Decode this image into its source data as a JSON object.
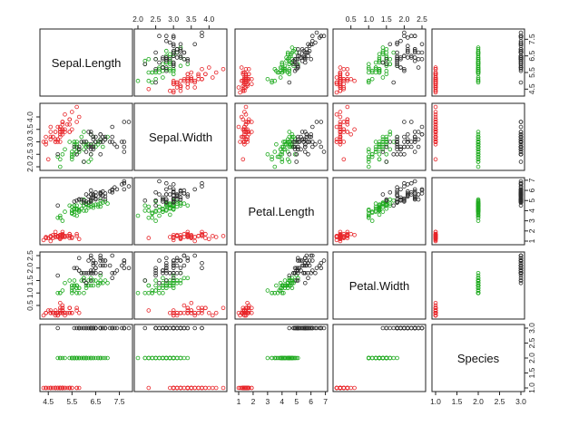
{
  "chart_data": {
    "type": "scatter",
    "variables": [
      "Sepal.Length",
      "Sepal.Width",
      "Petal.Length",
      "Petal.Width",
      "Species"
    ],
    "ranges": {
      "Sepal.Length": [
        4.3,
        7.9
      ],
      "Sepal.Width": [
        2.0,
        4.4
      ],
      "Petal.Length": [
        1.0,
        6.9
      ],
      "Petal.Width": [
        0.1,
        2.5
      ],
      "Species": [
        1,
        3
      ]
    },
    "ticks": {
      "Sepal.Length": [
        "4.5",
        "5.5",
        "6.5",
        "7.5"
      ],
      "Sepal.Width": [
        "2.0",
        "2.5",
        "3.0",
        "3.5",
        "4.0"
      ],
      "Petal.Length": [
        "1",
        "2",
        "3",
        "4",
        "5",
        "6",
        "7"
      ],
      "Petal.Width": [
        "0.5",
        "1.0",
        "1.5",
        "2.0",
        "2.5"
      ],
      "Species": [
        "1.0",
        "1.5",
        "2.0",
        "2.5",
        "3.0"
      ]
    },
    "colors": {
      "1": "#e8262a",
      "2": "#1faa1f",
      "3": "#2b2b2b"
    },
    "data": [
      [
        5.1,
        3.5,
        1.4,
        0.2,
        1
      ],
      [
        4.9,
        3.0,
        1.4,
        0.2,
        1
      ],
      [
        4.7,
        3.2,
        1.3,
        0.2,
        1
      ],
      [
        4.6,
        3.1,
        1.5,
        0.2,
        1
      ],
      [
        5.0,
        3.6,
        1.4,
        0.2,
        1
      ],
      [
        5.4,
        3.9,
        1.7,
        0.4,
        1
      ],
      [
        4.6,
        3.4,
        1.4,
        0.3,
        1
      ],
      [
        5.0,
        3.4,
        1.5,
        0.2,
        1
      ],
      [
        4.4,
        2.9,
        1.4,
        0.2,
        1
      ],
      [
        4.9,
        3.1,
        1.5,
        0.1,
        1
      ],
      [
        5.4,
        3.7,
        1.5,
        0.2,
        1
      ],
      [
        4.8,
        3.4,
        1.6,
        0.2,
        1
      ],
      [
        4.8,
        3.0,
        1.4,
        0.1,
        1
      ],
      [
        4.3,
        3.0,
        1.1,
        0.1,
        1
      ],
      [
        5.8,
        4.0,
        1.2,
        0.2,
        1
      ],
      [
        5.7,
        4.4,
        1.5,
        0.4,
        1
      ],
      [
        5.4,
        3.9,
        1.3,
        0.4,
        1
      ],
      [
        5.1,
        3.5,
        1.4,
        0.3,
        1
      ],
      [
        5.7,
        3.8,
        1.7,
        0.3,
        1
      ],
      [
        5.1,
        3.8,
        1.5,
        0.3,
        1
      ],
      [
        5.4,
        3.4,
        1.7,
        0.2,
        1
      ],
      [
        5.1,
        3.7,
        1.5,
        0.4,
        1
      ],
      [
        4.6,
        3.6,
        1.0,
        0.2,
        1
      ],
      [
        5.1,
        3.3,
        1.7,
        0.5,
        1
      ],
      [
        4.8,
        3.4,
        1.9,
        0.2,
        1
      ],
      [
        5.0,
        3.0,
        1.6,
        0.2,
        1
      ],
      [
        5.0,
        3.4,
        1.6,
        0.4,
        1
      ],
      [
        5.2,
        3.5,
        1.5,
        0.2,
        1
      ],
      [
        5.2,
        3.4,
        1.4,
        0.2,
        1
      ],
      [
        4.7,
        3.2,
        1.6,
        0.2,
        1
      ],
      [
        4.8,
        3.1,
        1.6,
        0.2,
        1
      ],
      [
        5.4,
        3.4,
        1.5,
        0.4,
        1
      ],
      [
        5.2,
        4.1,
        1.5,
        0.1,
        1
      ],
      [
        5.5,
        4.2,
        1.4,
        0.2,
        1
      ],
      [
        4.9,
        3.1,
        1.5,
        0.2,
        1
      ],
      [
        5.0,
        3.2,
        1.2,
        0.2,
        1
      ],
      [
        5.5,
        3.5,
        1.3,
        0.2,
        1
      ],
      [
        4.9,
        3.6,
        1.4,
        0.1,
        1
      ],
      [
        4.4,
        3.0,
        1.3,
        0.2,
        1
      ],
      [
        5.1,
        3.4,
        1.5,
        0.2,
        1
      ],
      [
        5.0,
        3.5,
        1.3,
        0.3,
        1
      ],
      [
        4.5,
        2.3,
        1.3,
        0.3,
        1
      ],
      [
        4.4,
        3.2,
        1.3,
        0.2,
        1
      ],
      [
        5.0,
        3.5,
        1.6,
        0.6,
        1
      ],
      [
        5.1,
        3.8,
        1.9,
        0.4,
        1
      ],
      [
        4.8,
        3.0,
        1.4,
        0.3,
        1
      ],
      [
        5.1,
        3.8,
        1.6,
        0.2,
        1
      ],
      [
        4.6,
        3.2,
        1.4,
        0.2,
        1
      ],
      [
        5.3,
        3.7,
        1.5,
        0.2,
        1
      ],
      [
        5.0,
        3.3,
        1.4,
        0.2,
        1
      ],
      [
        7.0,
        3.2,
        4.7,
        1.4,
        2
      ],
      [
        6.4,
        3.2,
        4.5,
        1.5,
        2
      ],
      [
        6.9,
        3.1,
        4.9,
        1.5,
        2
      ],
      [
        5.5,
        2.3,
        4.0,
        1.3,
        2
      ],
      [
        6.5,
        2.8,
        4.6,
        1.5,
        2
      ],
      [
        5.7,
        2.8,
        4.5,
        1.3,
        2
      ],
      [
        6.3,
        3.3,
        4.7,
        1.6,
        2
      ],
      [
        4.9,
        2.4,
        3.3,
        1.0,
        2
      ],
      [
        6.6,
        2.9,
        4.6,
        1.3,
        2
      ],
      [
        5.2,
        2.7,
        3.9,
        1.4,
        2
      ],
      [
        5.0,
        2.0,
        3.5,
        1.0,
        2
      ],
      [
        5.9,
        3.0,
        4.2,
        1.5,
        2
      ],
      [
        6.0,
        2.2,
        4.0,
        1.0,
        2
      ],
      [
        6.1,
        2.9,
        4.7,
        1.4,
        2
      ],
      [
        5.6,
        2.9,
        3.6,
        1.3,
        2
      ],
      [
        6.7,
        3.1,
        4.4,
        1.4,
        2
      ],
      [
        5.6,
        3.0,
        4.5,
        1.5,
        2
      ],
      [
        5.8,
        2.7,
        4.1,
        1.0,
        2
      ],
      [
        6.2,
        2.2,
        4.5,
        1.5,
        2
      ],
      [
        5.6,
        2.5,
        3.9,
        1.1,
        2
      ],
      [
        5.9,
        3.2,
        4.8,
        1.8,
        2
      ],
      [
        6.1,
        2.8,
        4.0,
        1.3,
        2
      ],
      [
        6.3,
        2.5,
        4.9,
        1.5,
        2
      ],
      [
        6.1,
        2.8,
        4.7,
        1.2,
        2
      ],
      [
        6.4,
        2.9,
        4.3,
        1.3,
        2
      ],
      [
        6.6,
        3.0,
        4.4,
        1.4,
        2
      ],
      [
        6.8,
        2.8,
        4.8,
        1.4,
        2
      ],
      [
        6.7,
        3.0,
        5.0,
        1.7,
        2
      ],
      [
        6.0,
        2.9,
        4.5,
        1.5,
        2
      ],
      [
        5.7,
        2.6,
        3.5,
        1.0,
        2
      ],
      [
        5.5,
        2.4,
        3.8,
        1.1,
        2
      ],
      [
        5.5,
        2.4,
        3.7,
        1.0,
        2
      ],
      [
        5.8,
        2.7,
        3.9,
        1.2,
        2
      ],
      [
        6.0,
        2.7,
        5.1,
        1.6,
        2
      ],
      [
        5.4,
        3.0,
        4.5,
        1.5,
        2
      ],
      [
        6.0,
        3.4,
        4.5,
        1.6,
        2
      ],
      [
        6.7,
        3.1,
        4.7,
        1.5,
        2
      ],
      [
        6.3,
        2.3,
        4.4,
        1.3,
        2
      ],
      [
        5.6,
        3.0,
        4.1,
        1.3,
        2
      ],
      [
        5.5,
        2.5,
        4.0,
        1.3,
        2
      ],
      [
        5.5,
        2.6,
        4.4,
        1.2,
        2
      ],
      [
        6.1,
        3.0,
        4.6,
        1.4,
        2
      ],
      [
        5.8,
        2.6,
        4.0,
        1.2,
        2
      ],
      [
        5.0,
        2.3,
        3.3,
        1.0,
        2
      ],
      [
        5.6,
        2.7,
        4.2,
        1.3,
        2
      ],
      [
        5.7,
        3.0,
        4.2,
        1.2,
        2
      ],
      [
        5.7,
        2.9,
        4.2,
        1.3,
        2
      ],
      [
        6.2,
        2.9,
        4.3,
        1.3,
        2
      ],
      [
        5.1,
        2.5,
        3.0,
        1.1,
        2
      ],
      [
        5.7,
        2.8,
        4.1,
        1.3,
        2
      ],
      [
        6.3,
        3.3,
        6.0,
        2.5,
        3
      ],
      [
        5.8,
        2.7,
        5.1,
        1.9,
        3
      ],
      [
        7.1,
        3.0,
        5.9,
        2.1,
        3
      ],
      [
        6.3,
        2.9,
        5.6,
        1.8,
        3
      ],
      [
        6.5,
        3.0,
        5.8,
        2.2,
        3
      ],
      [
        7.6,
        3.0,
        6.6,
        2.1,
        3
      ],
      [
        4.9,
        2.5,
        4.5,
        1.7,
        3
      ],
      [
        7.3,
        2.9,
        6.3,
        1.8,
        3
      ],
      [
        6.7,
        2.5,
        5.8,
        1.8,
        3
      ],
      [
        7.2,
        3.6,
        6.1,
        2.5,
        3
      ],
      [
        6.5,
        3.2,
        5.1,
        2.0,
        3
      ],
      [
        6.4,
        2.7,
        5.3,
        1.9,
        3
      ],
      [
        6.8,
        3.0,
        5.5,
        2.1,
        3
      ],
      [
        5.7,
        2.5,
        5.0,
        2.0,
        3
      ],
      [
        5.8,
        2.8,
        5.1,
        2.4,
        3
      ],
      [
        6.4,
        3.2,
        5.3,
        2.3,
        3
      ],
      [
        6.5,
        3.0,
        5.5,
        1.8,
        3
      ],
      [
        7.7,
        3.8,
        6.7,
        2.2,
        3
      ],
      [
        7.7,
        2.6,
        6.9,
        2.3,
        3
      ],
      [
        6.0,
        2.2,
        5.0,
        1.5,
        3
      ],
      [
        6.9,
        3.2,
        5.7,
        2.3,
        3
      ],
      [
        5.6,
        2.8,
        4.9,
        2.0,
        3
      ],
      [
        7.7,
        2.8,
        6.7,
        2.0,
        3
      ],
      [
        6.3,
        2.7,
        4.9,
        1.8,
        3
      ],
      [
        6.7,
        3.3,
        5.7,
        2.1,
        3
      ],
      [
        7.2,
        3.2,
        6.0,
        1.8,
        3
      ],
      [
        6.2,
        2.8,
        4.8,
        1.8,
        3
      ],
      [
        6.1,
        3.0,
        4.9,
        1.8,
        3
      ],
      [
        6.4,
        2.8,
        5.6,
        2.1,
        3
      ],
      [
        7.2,
        3.0,
        5.8,
        1.6,
        3
      ],
      [
        7.4,
        2.8,
        6.1,
        1.9,
        3
      ],
      [
        7.9,
        3.8,
        6.4,
        2.0,
        3
      ],
      [
        6.4,
        2.8,
        5.6,
        2.2,
        3
      ],
      [
        6.3,
        2.8,
        5.1,
        1.5,
        3
      ],
      [
        6.1,
        2.6,
        5.6,
        1.4,
        3
      ],
      [
        7.7,
        3.0,
        6.1,
        2.3,
        3
      ],
      [
        6.3,
        3.4,
        5.6,
        2.4,
        3
      ],
      [
        6.4,
        3.1,
        5.5,
        1.8,
        3
      ],
      [
        6.0,
        3.0,
        4.8,
        1.8,
        3
      ],
      [
        6.9,
        3.1,
        5.4,
        2.1,
        3
      ],
      [
        6.7,
        3.1,
        5.6,
        2.4,
        3
      ],
      [
        6.9,
        3.1,
        5.1,
        2.3,
        3
      ],
      [
        5.8,
        2.7,
        5.1,
        1.9,
        3
      ],
      [
        6.8,
        3.2,
        5.9,
        2.3,
        3
      ],
      [
        6.7,
        3.3,
        5.7,
        2.5,
        3
      ],
      [
        6.7,
        3.0,
        5.2,
        2.3,
        3
      ],
      [
        6.3,
        2.5,
        5.0,
        1.9,
        3
      ],
      [
        6.5,
        3.0,
        5.2,
        2.0,
        3
      ],
      [
        6.2,
        3.4,
        5.4,
        2.3,
        3
      ],
      [
        5.9,
        3.0,
        5.1,
        1.8,
        3
      ]
    ]
  }
}
